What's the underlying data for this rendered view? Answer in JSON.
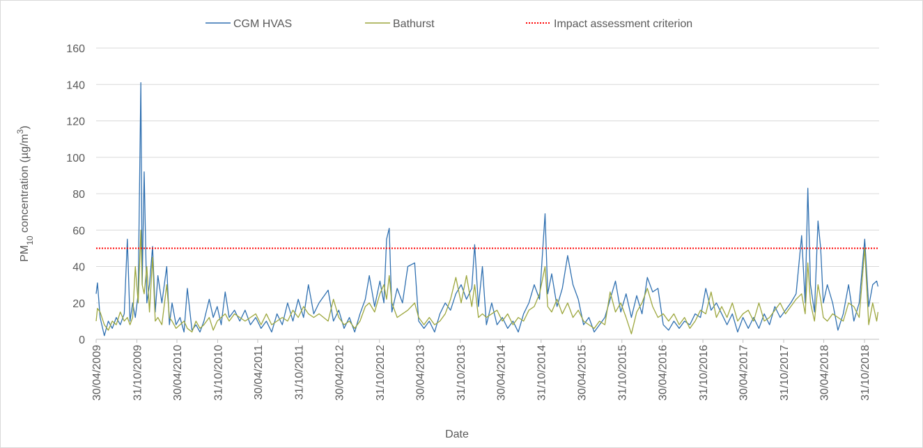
{
  "chart_data": {
    "type": "line",
    "xlabel": "Date",
    "ylabel_parts": [
      "PM",
      "10",
      " concentration (µg/m",
      "3",
      ")"
    ],
    "xlim": [
      "30/04/2009",
      "05/01/2019"
    ],
    "xticks": [
      "30/04/2009",
      "31/10/2009",
      "30/04/2010",
      "31/10/2010",
      "30/04/2011",
      "31/10/2011",
      "30/04/2012",
      "31/10/2012",
      "30/04/2013",
      "31/10/2013",
      "30/04/2014",
      "31/10/2014",
      "30/04/2015",
      "31/10/2015",
      "30/04/2016",
      "31/10/2016",
      "30/04/2017",
      "31/10/2017",
      "30/04/2018",
      "31/10/2018"
    ],
    "ylim": [
      0,
      160
    ],
    "yticks": [
      0,
      20,
      40,
      60,
      80,
      100,
      120,
      140,
      160
    ],
    "grid": true,
    "legend": "top",
    "criterion": {
      "name": "Impact assessment criterion",
      "value": 50,
      "color": "#ff0000"
    },
    "x": [
      "30/04/2009",
      "06/05/2009",
      "18/05/2009",
      "06/06/2009",
      "24/06/2009",
      "12/07/2009",
      "30/07/2009",
      "17/08/2009",
      "04/09/2009",
      "18/09/2009",
      "30/09/2009",
      "12/10/2009",
      "24/10/2009",
      "06/11/2009",
      "18/11/2009",
      "24/11/2009",
      "03/12/2009",
      "15/12/2009",
      "27/12/2009",
      "10/01/2010",
      "22/01/2010",
      "03/02/2010",
      "21/02/2010",
      "15/03/2010",
      "27/03/2010",
      "08/04/2010",
      "26/04/2010",
      "14/05/2010",
      "01/06/2010",
      "16/06/2010",
      "07/07/2010",
      "25/07/2010",
      "12/08/2010",
      "30/08/2010",
      "23/09/2010",
      "11/10/2010",
      "29/10/2010",
      "16/11/2010",
      "04/12/2010",
      "22/12/2010",
      "15/01/2011",
      "08/02/2011",
      "04/03/2011",
      "28/03/2011",
      "21/04/2011",
      "15/05/2011",
      "08/06/2011",
      "02/07/2011",
      "26/07/2011",
      "19/08/2011",
      "12/09/2011",
      "06/10/2011",
      "30/10/2011",
      "23/11/2011",
      "15/12/2011",
      "08/01/2012",
      "01/02/2012",
      "13/03/2012",
      "06/04/2012",
      "30/04/2012",
      "24/05/2012",
      "17/06/2012",
      "11/07/2012",
      "04/08/2012",
      "28/08/2012",
      "15/09/2012",
      "09/10/2012",
      "02/11/2012",
      "20/11/2012",
      "02/12/2012",
      "14/12/2012",
      "26/12/2012",
      "19/01/2013",
      "12/02/2013",
      "08/03/2013",
      "08/04/2013",
      "26/04/2013",
      "20/05/2013",
      "13/06/2013",
      "07/07/2013",
      "31/07/2013",
      "24/08/2013",
      "17/09/2013",
      "11/10/2013",
      "04/11/2013",
      "28/11/2013",
      "22/12/2013",
      "04/01/2014",
      "21/01/2014",
      "08/02/2014",
      "26/02/2014",
      "22/03/2014",
      "15/04/2014",
      "09/05/2014",
      "02/06/2014",
      "26/06/2014",
      "20/07/2014",
      "13/08/2014",
      "06/09/2014",
      "30/09/2014",
      "24/10/2014",
      "18/11/2014",
      "30/11/2014",
      "18/12/2014",
      "11/01/2015",
      "04/02/2015",
      "28/02/2015",
      "24/03/2015",
      "17/04/2015",
      "11/05/2015",
      "04/06/2015",
      "28/06/2015",
      "22/07/2015",
      "15/08/2015",
      "08/09/2015",
      "02/10/2015",
      "26/10/2015",
      "19/11/2015",
      "13/12/2015",
      "06/01/2016",
      "30/01/2016",
      "23/02/2016",
      "18/03/2016",
      "11/04/2016",
      "05/05/2016",
      "29/05/2016",
      "22/06/2016",
      "16/07/2016",
      "09/08/2016",
      "02/09/2016",
      "26/09/2016",
      "20/10/2016",
      "13/11/2016",
      "07/12/2016",
      "31/12/2016",
      "24/01/2017",
      "17/02/2017",
      "13/03/2017",
      "06/04/2017",
      "30/04/2017",
      "24/05/2017",
      "17/06/2017",
      "11/07/2017",
      "04/08/2017",
      "28/08/2017",
      "21/09/2017",
      "15/10/2017",
      "08/11/2017",
      "02/12/2017",
      "26/12/2017",
      "20/01/2018",
      "05/02/2018",
      "17/02/2018",
      "01/03/2018",
      "19/03/2018",
      "04/04/2018",
      "16/04/2018",
      "28/04/2018",
      "16/05/2018",
      "09/06/2018",
      "03/07/2018",
      "27/07/2018",
      "20/08/2018",
      "13/09/2018",
      "07/10/2018",
      "01/11/2018",
      "19/11/2018",
      "07/12/2018",
      "25/12/2018",
      "31/12/2018"
    ],
    "series": [
      {
        "name": "CGM HVAS",
        "color": "#2e6fb0",
        "values": [
          25,
          31,
          12,
          2,
          10,
          6,
          12,
          8,
          14,
          55,
          10,
          20,
          12,
          25,
          141,
          30,
          92,
          20,
          30,
          51,
          15,
          35,
          20,
          40,
          8,
          20,
          8,
          12,
          4,
          28,
          5,
          8,
          4,
          10,
          22,
          12,
          18,
          8,
          26,
          12,
          16,
          10,
          16,
          8,
          12,
          6,
          10,
          4,
          14,
          8,
          20,
          10,
          22,
          12,
          30,
          14,
          20,
          27,
          10,
          16,
          6,
          12,
          4,
          14,
          22,
          35,
          18,
          32,
          20,
          55,
          61,
          15,
          28,
          20,
          40,
          42,
          10,
          6,
          10,
          4,
          14,
          20,
          16,
          25,
          30,
          22,
          28,
          52,
          18,
          40,
          8,
          20,
          8,
          12,
          6,
          10,
          4,
          14,
          20,
          30,
          22,
          69,
          25,
          36,
          18,
          28,
          46,
          30,
          22,
          8,
          12,
          4,
          8,
          12,
          22,
          32,
          15,
          25,
          12,
          24,
          14,
          34,
          26,
          28,
          8,
          5,
          10,
          6,
          10,
          8,
          14,
          12,
          28,
          16,
          20,
          14,
          8,
          14,
          4,
          12,
          6,
          12,
          6,
          14,
          8,
          18,
          12,
          16,
          20,
          25,
          57,
          20,
          83,
          30,
          15,
          65,
          50,
          20,
          30,
          20,
          5,
          14,
          30,
          10,
          20,
          55,
          18,
          30,
          32,
          29
        ]
      },
      {
        "name": "Bathurst",
        "color": "#9ca63c",
        "values": [
          10,
          17,
          15,
          8,
          5,
          10,
          8,
          15,
          10,
          12,
          8,
          12,
          40,
          20,
          60,
          30,
          25,
          40,
          15,
          45,
          10,
          12,
          8,
          30,
          12,
          10,
          6,
          8,
          10,
          6,
          4,
          10,
          6,
          8,
          12,
          5,
          10,
          12,
          14,
          10,
          14,
          12,
          10,
          12,
          14,
          8,
          14,
          8,
          10,
          12,
          10,
          16,
          12,
          18,
          14,
          12,
          14,
          10,
          22,
          12,
          8,
          10,
          6,
          10,
          18,
          20,
          15,
          25,
          30,
          22,
          35,
          20,
          12,
          14,
          16,
          20,
          12,
          8,
          12,
          8,
          10,
          14,
          22,
          34,
          20,
          35,
          18,
          30,
          12,
          14,
          12,
          14,
          16,
          10,
          14,
          8,
          12,
          10,
          16,
          18,
          25,
          40,
          18,
          15,
          22,
          14,
          20,
          12,
          16,
          10,
          8,
          6,
          10,
          8,
          26,
          15,
          20,
          12,
          3,
          15,
          20,
          28,
          18,
          12,
          14,
          10,
          14,
          8,
          12,
          6,
          10,
          16,
          14,
          26,
          12,
          18,
          12,
          20,
          10,
          14,
          16,
          10,
          20,
          10,
          12,
          16,
          20,
          14,
          18,
          22,
          25,
          14,
          42,
          20,
          10,
          30,
          22,
          12,
          10,
          14,
          12,
          10,
          20,
          18,
          12,
          50,
          8,
          20,
          10,
          15
        ]
      }
    ]
  }
}
